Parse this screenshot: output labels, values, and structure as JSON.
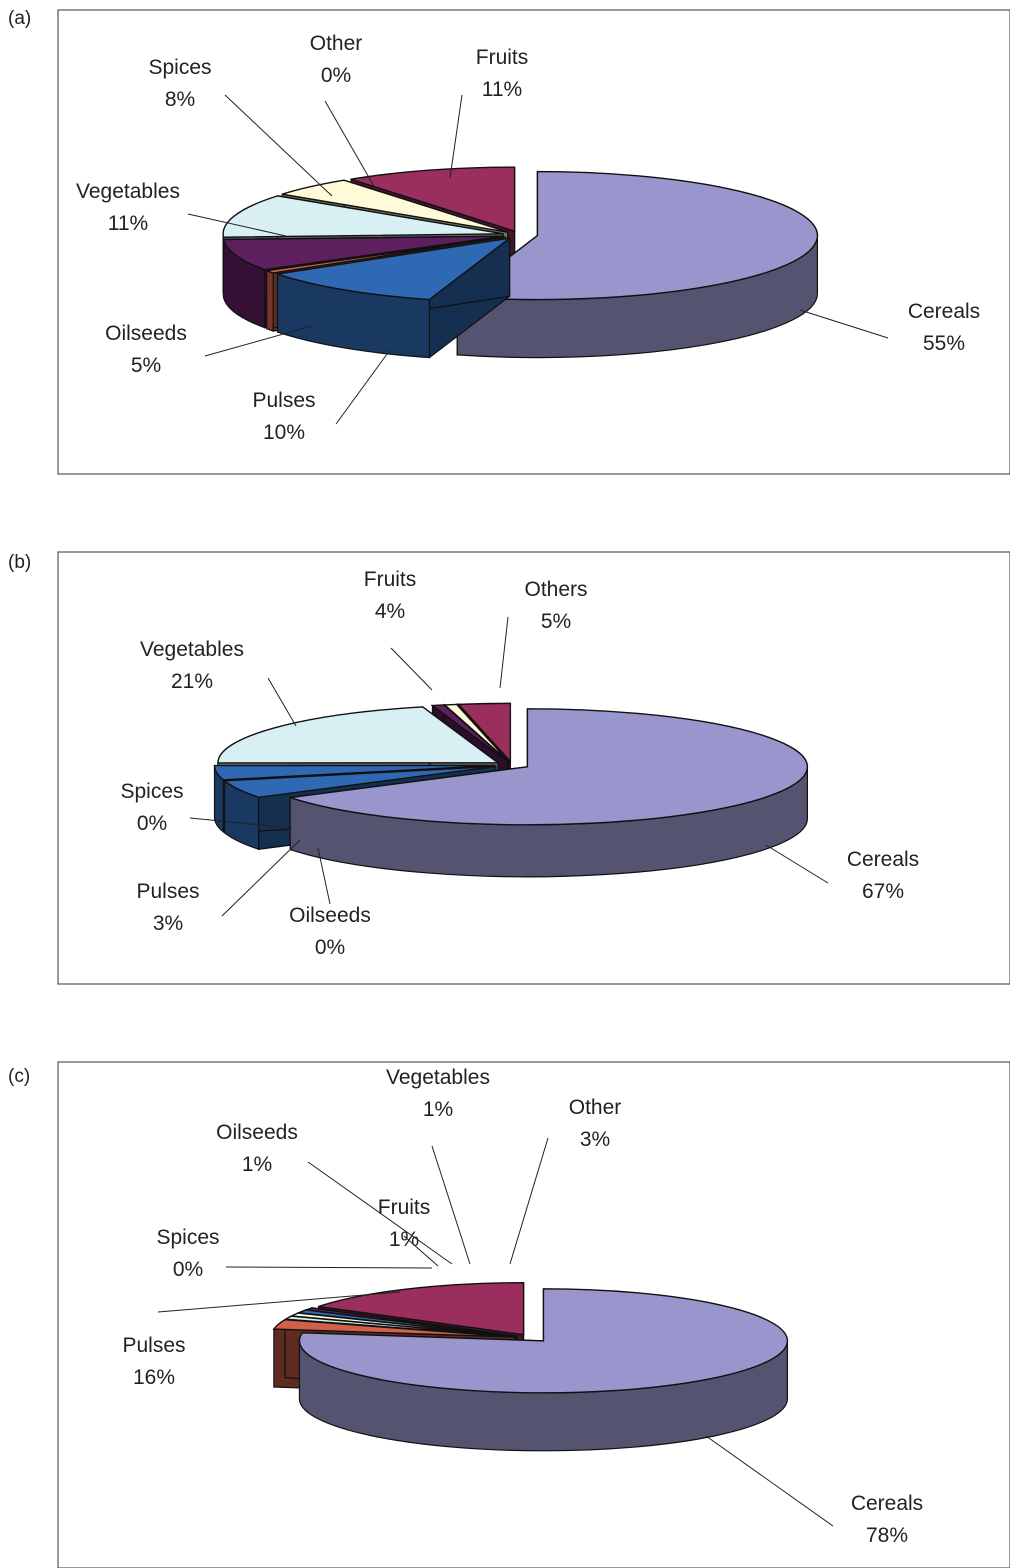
{
  "colors": {
    "Cereals": "#9896cc",
    "Fruits": "#2f68b3",
    "Other": "#d0604a",
    "Others": "#2f68b3",
    "Spices": "#5e1f5e",
    "Vegetables": "#d8f0f4",
    "Oilseeds": "#fffbd8",
    "Pulses": "#9a2f5e"
  },
  "chart_data": [
    {
      "panel": "(a)",
      "type": "pie",
      "style": "3d-exploded",
      "slices": [
        {
          "name": "Cereals",
          "value": 55,
          "label": "55%"
        },
        {
          "name": "Fruits",
          "value": 11,
          "label": "11%"
        },
        {
          "name": "Other",
          "value": 0,
          "label": "0%"
        },
        {
          "name": "Spices",
          "value": 8,
          "label": "8%"
        },
        {
          "name": "Vegetables",
          "value": 11,
          "label": "11%"
        },
        {
          "name": "Oilseeds",
          "value": 5,
          "label": "5%"
        },
        {
          "name": "Pulses",
          "value": 10,
          "label": "10%"
        }
      ]
    },
    {
      "panel": "(b)",
      "type": "pie",
      "style": "3d-exploded",
      "slices": [
        {
          "name": "Cereals",
          "value": 67,
          "label": "67%"
        },
        {
          "name": "Others",
          "value": 5,
          "label": "5%"
        },
        {
          "name": "Fruits",
          "value": 4,
          "label": "4%"
        },
        {
          "name": "Vegetables",
          "value": 21,
          "label": "21%"
        },
        {
          "name": "Spices",
          "value": 0,
          "label": "0%"
        },
        {
          "name": "Oilseeds",
          "value": 0,
          "label": "0%"
        },
        {
          "name": "Pulses",
          "value": 3,
          "label": "3%"
        }
      ]
    },
    {
      "panel": "(c)",
      "type": "pie",
      "style": "3d-exploded",
      "slices": [
        {
          "name": "Cereals",
          "value": 78,
          "label": "78%"
        },
        {
          "name": "Other",
          "value": 3,
          "label": "3%"
        },
        {
          "name": "Vegetables",
          "value": 1,
          "label": "1%"
        },
        {
          "name": "Oilseeds",
          "value": 1,
          "label": "1%"
        },
        {
          "name": "Fruits",
          "value": 1,
          "label": "1%"
        },
        {
          "name": "Spices",
          "value": 0,
          "label": "0%"
        },
        {
          "name": "Pulses",
          "value": 16,
          "label": "16%"
        }
      ]
    }
  ]
}
